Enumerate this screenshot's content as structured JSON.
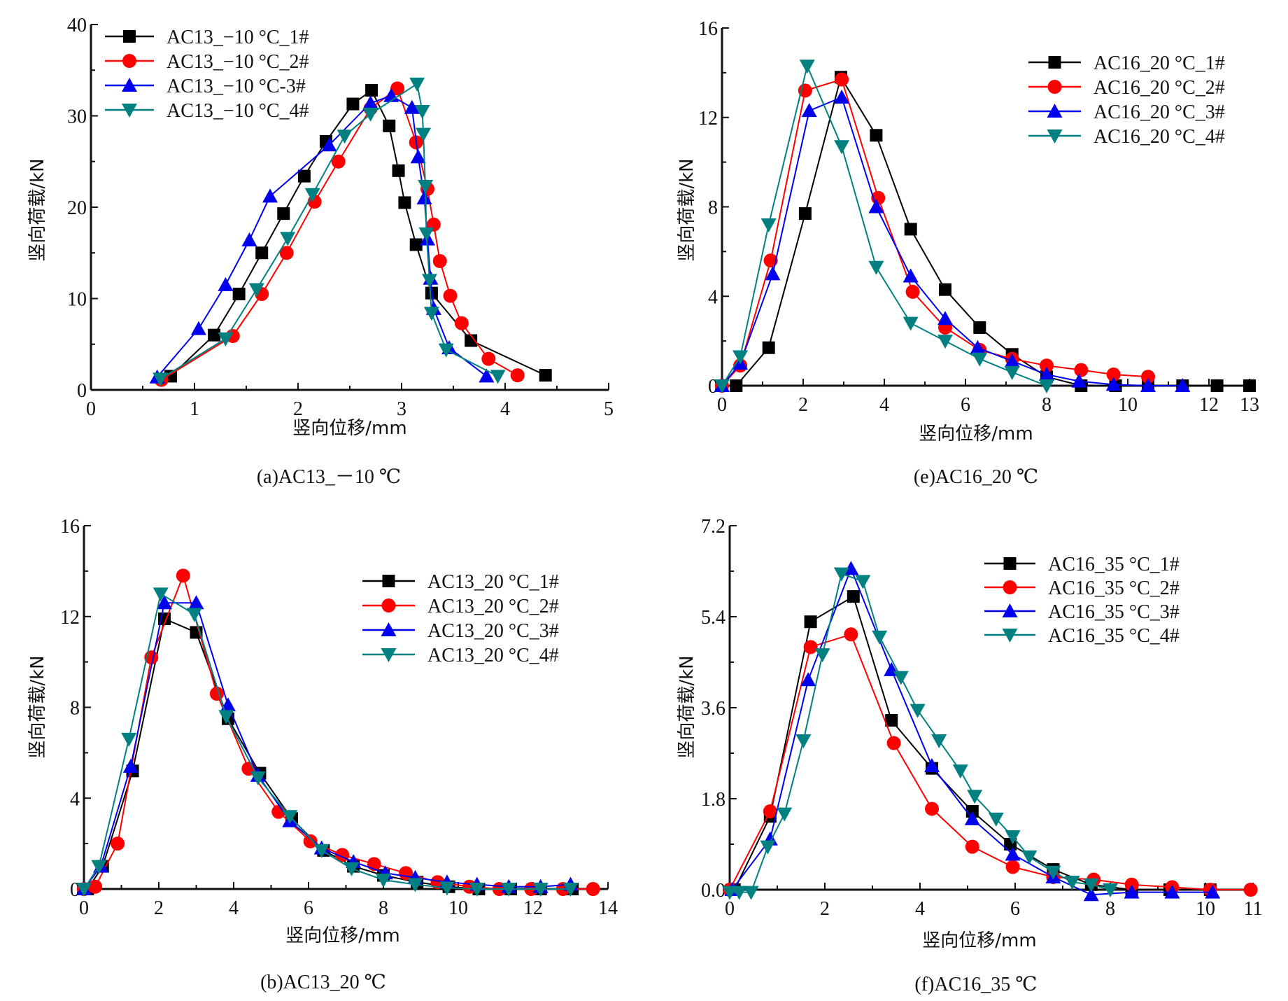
{
  "colors": {
    "s1": "#000000",
    "s2": "#ff0000",
    "s3": "#0000ee",
    "s4": "#008080",
    "axis": "#111111"
  },
  "chart_data": [
    {
      "id": "a",
      "type": "line",
      "caption": "(a)AC13_－10 ℃",
      "xlabel": "竖向位移/mm",
      "ylabel": "竖向荷载/kN",
      "xlim": [
        0,
        5
      ],
      "ylim": [
        0,
        40
      ],
      "xticks": [
        0,
        1,
        2,
        3,
        4,
        5
      ],
      "xtick_labels": [
        "0",
        "1",
        "2",
        "3",
        "4",
        "5"
      ],
      "xminor": [
        0.5,
        1.5,
        2.5,
        3.5,
        4.5
      ],
      "yticks": [
        0,
        10,
        20,
        30,
        40
      ],
      "ytick_labels": [
        "0",
        "10",
        "20",
        "30",
        "40"
      ],
      "yminor": [
        5,
        15,
        25,
        35
      ],
      "grid": false,
      "legend_position": "top-left",
      "series": [
        {
          "name": "AC13_−10 °C_1#",
          "marker": "square",
          "x": [
            0.77,
            1.19,
            1.43,
            1.65,
            1.86,
            2.06,
            2.27,
            2.53,
            2.71,
            2.88,
            2.97,
            3.03,
            3.14,
            3.29,
            3.67,
            4.39
          ],
          "y": [
            1.5,
            6.0,
            10.5,
            15.0,
            19.3,
            23.4,
            27.2,
            31.3,
            32.8,
            28.9,
            24.0,
            20.5,
            15.9,
            10.6,
            5.4,
            1.6
          ]
        },
        {
          "name": "AC13_−10 °C_2#",
          "marker": "circle",
          "x": [
            0.68,
            1.37,
            1.65,
            1.89,
            2.16,
            2.39,
            2.7,
            2.96,
            3.14,
            3.25,
            3.31,
            3.37,
            3.47,
            3.58,
            3.84,
            4.12
          ],
          "y": [
            1.1,
            5.9,
            10.5,
            15.0,
            20.6,
            25.0,
            30.8,
            33.0,
            27.1,
            22.0,
            18.1,
            14.1,
            10.3,
            7.3,
            3.4,
            1.6
          ]
        },
        {
          "name": "AC13_−10 °C-3#",
          "marker": "triangle-up",
          "x": [
            0.64,
            1.04,
            1.3,
            1.53,
            1.73,
            2.3,
            2.7,
            2.9,
            3.1,
            3.16,
            3.22,
            3.25,
            3.28,
            3.31,
            3.46,
            3.82
          ],
          "y": [
            1.4,
            6.7,
            11.5,
            16.4,
            21.2,
            26.8,
            31.4,
            32.2,
            30.9,
            25.5,
            21.0,
            16.5,
            12.2,
            8.9,
            4.6,
            1.5
          ]
        },
        {
          "name": "AC13_−10 °C_4#",
          "marker": "triangle-down",
          "x": [
            0.67,
            1.3,
            1.6,
            1.9,
            2.14,
            2.45,
            2.7,
            3.15,
            3.2,
            3.21,
            3.23,
            3.24,
            3.27,
            3.29,
            3.43,
            3.93
          ],
          "y": [
            1.2,
            5.6,
            11.0,
            16.6,
            21.4,
            27.8,
            30.2,
            33.5,
            30.5,
            28.0,
            22.3,
            17.1,
            12.0,
            8.4,
            4.4,
            1.5
          ]
        }
      ]
    },
    {
      "id": "e",
      "type": "line",
      "caption": "(e)AC16_20 ℃",
      "xlabel": "竖向位移/mm",
      "ylabel": "竖向荷载/kN",
      "xlim": [
        0,
        13
      ],
      "ylim": [
        0,
        16
      ],
      "xticks": [
        0,
        2,
        4,
        6,
        8,
        10,
        12,
        13
      ],
      "xtick_labels": [
        "0",
        "2",
        "4",
        "6",
        "8",
        "10",
        "12",
        "13"
      ],
      "xminor": [
        1,
        3,
        5,
        7,
        9,
        11
      ],
      "yticks": [
        0,
        4,
        8,
        12,
        16
      ],
      "ytick_labels": [
        "0",
        "4",
        "8",
        "12",
        "16"
      ],
      "yminor": [
        2,
        6,
        10,
        14
      ],
      "grid": false,
      "legend_position": "top-right",
      "series": [
        {
          "name": "AC16_20 °C_1#",
          "marker": "square",
          "x": [
            0.35,
            1.15,
            2.05,
            2.93,
            3.8,
            4.65,
            5.5,
            6.35,
            7.15,
            8.0,
            8.85,
            9.7,
            10.5,
            11.35,
            12.2,
            13.0
          ],
          "y": [
            0,
            1.7,
            7.7,
            13.8,
            11.2,
            7.0,
            4.3,
            2.6,
            1.4,
            0.4,
            0,
            0,
            0,
            0,
            0,
            0
          ]
        },
        {
          "name": "AC16_20 °C_2#",
          "marker": "circle",
          "x": [
            0,
            0.45,
            1.2,
            2.05,
            2.95,
            3.85,
            4.7,
            5.5,
            6.35,
            7.15,
            8.0,
            8.85,
            9.65,
            10.5
          ],
          "y": [
            0,
            0.9,
            5.6,
            13.2,
            13.7,
            8.4,
            4.2,
            2.6,
            1.6,
            1.2,
            0.9,
            0.7,
            0.5,
            0.4
          ]
        },
        {
          "name": "AC16_20 °C_3#",
          "marker": "triangle-up",
          "x": [
            0,
            0.45,
            1.25,
            2.15,
            2.95,
            3.8,
            4.65,
            5.5,
            6.3,
            7.15,
            8.0,
            8.8,
            9.65,
            10.5,
            11.35
          ],
          "y": [
            0,
            1.0,
            5.0,
            12.3,
            12.9,
            8.0,
            4.9,
            3.0,
            1.7,
            1.1,
            0.5,
            0.2,
            0.05,
            0,
            0
          ]
        },
        {
          "name": "AC16_20 °C_4#",
          "marker": "triangle-down",
          "x": [
            0,
            0.45,
            1.15,
            2.1,
            2.95,
            3.8,
            4.65,
            5.5,
            6.35,
            7.15,
            8.0
          ],
          "y": [
            0,
            1.3,
            7.2,
            14.3,
            10.7,
            5.3,
            2.8,
            2.0,
            1.2,
            0.6,
            0
          ]
        }
      ]
    },
    {
      "id": "b",
      "type": "line",
      "caption": "(b)AC13_20 ℃",
      "xlabel": "竖向位移/mm",
      "ylabel": "竖向荷载/kN",
      "xlim": [
        0,
        14
      ],
      "ylim": [
        0,
        16
      ],
      "xticks": [
        0,
        2,
        4,
        6,
        8,
        10,
        12,
        14
      ],
      "xtick_labels": [
        "0",
        "2",
        "4",
        "6",
        "8",
        "10",
        "12",
        "14"
      ],
      "xminor": [
        1,
        3,
        5,
        7,
        9,
        11,
        13
      ],
      "yticks": [
        0,
        4,
        8,
        12,
        16
      ],
      "ytick_labels": [
        "0",
        "4",
        "8",
        "12",
        "16"
      ],
      "yminor": [
        2,
        6,
        10,
        14
      ],
      "grid": false,
      "legend_position": "top-right",
      "series": [
        {
          "name": "AC13_20 °C_1#",
          "marker": "square",
          "x": [
            0.1,
            0.5,
            1.3,
            2.15,
            3.0,
            3.85,
            4.7,
            5.55,
            6.4,
            7.2,
            8.0,
            8.9,
            9.75,
            10.55,
            11.4,
            12.2,
            13.05
          ],
          "y": [
            0,
            1.0,
            5.2,
            11.9,
            11.3,
            7.5,
            5.1,
            3.1,
            1.7,
            1.0,
            0.6,
            0.3,
            0.1,
            0,
            0,
            0,
            0
          ]
        },
        {
          "name": "AC13_20 °C_2#",
          "marker": "circle",
          "x": [
            0,
            0.3,
            0.9,
            1.8,
            2.65,
            3.55,
            4.4,
            5.2,
            6.05,
            6.9,
            7.75,
            8.6,
            9.45,
            10.3,
            11.1,
            11.95,
            12.8,
            13.6
          ],
          "y": [
            0,
            0.1,
            2.0,
            10.2,
            13.8,
            8.6,
            5.3,
            3.4,
            2.1,
            1.5,
            1.1,
            0.7,
            0.3,
            0.1,
            0,
            0,
            0,
            0
          ]
        },
        {
          "name": "AC13_20 °C_3#",
          "marker": "triangle-up",
          "x": [
            0,
            0.45,
            1.25,
            2.15,
            3.0,
            3.85,
            4.65,
            5.5,
            6.35,
            7.2,
            8.05,
            8.85,
            9.7,
            10.5,
            11.35,
            12.2,
            13.0
          ],
          "y": [
            0,
            1.0,
            5.4,
            12.6,
            12.6,
            8.1,
            5.0,
            3.0,
            1.8,
            1.2,
            0.7,
            0.5,
            0.3,
            0.2,
            0.1,
            0.1,
            0.2
          ]
        },
        {
          "name": "AC13_20 °C_4#",
          "marker": "triangle-down",
          "x": [
            0,
            0.4,
            1.2,
            2.05,
            2.95,
            3.8,
            4.65,
            5.5,
            6.35,
            7.15,
            8.0,
            8.85,
            9.7,
            10.5,
            11.35,
            12.2,
            13.0
          ],
          "y": [
            0,
            1.0,
            6.6,
            13.0,
            12.1,
            7.6,
            4.9,
            3.2,
            1.7,
            0.9,
            0.4,
            0.2,
            0.05,
            0,
            0,
            0,
            0
          ]
        }
      ]
    },
    {
      "id": "f",
      "type": "line",
      "caption": "(f)AC16_35 ℃",
      "xlabel": "竖向位移/mm",
      "ylabel": "竖向荷载/kN",
      "xlim": [
        0,
        11
      ],
      "ylim": [
        0,
        7.2
      ],
      "xticks": [
        0,
        2,
        4,
        6,
        8,
        10,
        11
      ],
      "xtick_labels": [
        "0",
        "2",
        "4",
        "6",
        "8",
        "10",
        "11"
      ],
      "xminor": [
        1,
        3,
        5,
        7,
        9
      ],
      "yticks": [
        0,
        1.8,
        3.6,
        5.4,
        7.2
      ],
      "ytick_labels": [
        "0.0",
        "1.8",
        "3.6",
        "5.4",
        "7.2"
      ],
      "yminor": [
        0.9,
        2.7,
        4.5,
        6.3
      ],
      "grid": false,
      "legend_position": "top-right",
      "series": [
        {
          "name": "AC16_35 °C_1#",
          "marker": "square",
          "x": [
            0.1,
            0.85,
            1.7,
            2.6,
            3.4,
            4.25,
            5.1,
            5.9,
            6.8,
            7.6,
            8.45,
            9.25,
            10.1
          ],
          "y": [
            0,
            1.45,
            5.3,
            5.8,
            3.35,
            2.4,
            1.55,
            0.9,
            0.4,
            0.1,
            0.0,
            0.0,
            0.0
          ]
        },
        {
          "name": "AC16_35 °C_2#",
          "marker": "circle",
          "x": [
            0,
            0.85,
            1.7,
            2.55,
            3.45,
            4.25,
            5.1,
            5.95,
            6.8,
            7.65,
            8.45,
            9.3,
            10.1,
            10.95
          ],
          "y": [
            0,
            1.55,
            4.8,
            5.05,
            2.9,
            1.6,
            0.85,
            0.45,
            0.25,
            0.2,
            0.1,
            0.05,
            0,
            0
          ]
        },
        {
          "name": "AC16_35 °C_3#",
          "marker": "triangle-up",
          "x": [
            0.05,
            0.85,
            1.65,
            2.55,
            3.4,
            4.25,
            5.1,
            5.95,
            6.8,
            7.6,
            8.45,
            9.3,
            10.15
          ],
          "y": [
            0,
            1.0,
            4.15,
            6.35,
            4.35,
            2.45,
            1.4,
            0.7,
            0.25,
            -0.1,
            -0.05,
            -0.05,
            -0.05
          ]
        },
        {
          "name": "AC16_35 °C_4#",
          "marker": "triangle-down",
          "x": [
            0,
            0.2,
            0.45,
            0.8,
            1.15,
            1.55,
            1.95,
            2.35,
            2.8,
            3.15,
            3.6,
            3.95,
            4.4,
            4.85,
            5.15,
            5.6,
            5.95,
            6.3,
            6.8,
            7.2,
            7.6,
            8.0
          ],
          "y": [
            -0.05,
            -0.05,
            -0.05,
            0.85,
            1.5,
            2.95,
            4.65,
            6.25,
            6.1,
            5.0,
            4.2,
            3.55,
            2.95,
            2.35,
            1.85,
            1.4,
            1.05,
            0.65,
            0.35,
            0.15,
            0.1,
            0.0
          ]
        }
      ]
    }
  ]
}
